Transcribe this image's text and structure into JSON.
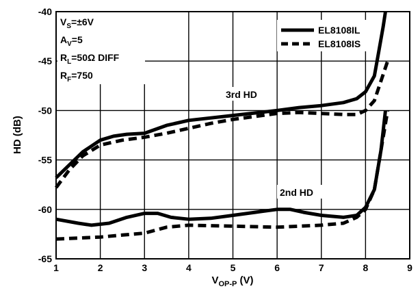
{
  "chart_data": {
    "type": "line",
    "title": "",
    "xlabel": {
      "main": "V",
      "sub": "OP-P",
      "unit": " (V)"
    },
    "ylabel": "HD (dB)",
    "xlim": [
      1,
      9
    ],
    "ylim": [
      -65,
      -40
    ],
    "x_ticks": [
      "1",
      "2",
      "3",
      "4",
      "5",
      "6",
      "7",
      "8",
      "9"
    ],
    "y_ticks": [
      "-40",
      "-45",
      "-50",
      "-55",
      "-60",
      "-65"
    ],
    "grid": true,
    "legend_position": "top-right",
    "conditions": [
      {
        "main": "V",
        "sub": "S",
        "rest": "=±6V"
      },
      {
        "main": "A",
        "sub": "V",
        "rest": "=5"
      },
      {
        "main": "R",
        "sub": "L",
        "rest": "=50Ω DIFF"
      },
      {
        "main": "R",
        "sub": "F",
        "rest": "=750"
      }
    ],
    "annotations": [
      "3rd HD",
      "2nd HD"
    ],
    "series": [
      {
        "name": "EL8108IL",
        "style": "solid",
        "color": "#000000",
        "curves": [
          {
            "label": "3rd HD",
            "points": [
              [
                1,
                -56.8
              ],
              [
                1.3,
                -55.5
              ],
              [
                1.6,
                -54.2
              ],
              [
                2,
                -53.0
              ],
              [
                2.3,
                -52.6
              ],
              [
                2.6,
                -52.4
              ],
              [
                3,
                -52.3
              ],
              [
                3.5,
                -51.5
              ],
              [
                4,
                -51.0
              ],
              [
                5,
                -50.5
              ],
              [
                6,
                -50.0
              ],
              [
                6.5,
                -49.7
              ],
              [
                7,
                -49.5
              ],
              [
                7.5,
                -49.2
              ],
              [
                7.8,
                -48.8
              ],
              [
                8,
                -48.1
              ],
              [
                8.2,
                -46.5
              ],
              [
                8.3,
                -44.0
              ],
              [
                8.4,
                -41.5
              ],
              [
                8.45,
                -40.0
              ]
            ]
          },
          {
            "label": "2nd HD",
            "points": [
              [
                1,
                -61.0
              ],
              [
                1.5,
                -61.4
              ],
              [
                1.8,
                -61.6
              ],
              [
                2.2,
                -61.4
              ],
              [
                2.6,
                -60.8
              ],
              [
                3,
                -60.4
              ],
              [
                3.3,
                -60.4
              ],
              [
                3.6,
                -60.8
              ],
              [
                4,
                -61.0
              ],
              [
                4.5,
                -60.9
              ],
              [
                5,
                -60.6
              ],
              [
                5.5,
                -60.3
              ],
              [
                6,
                -60.0
              ],
              [
                6.3,
                -60.0
              ],
              [
                6.6,
                -60.3
              ],
              [
                7,
                -60.6
              ],
              [
                7.5,
                -60.8
              ],
              [
                7.8,
                -60.6
              ],
              [
                8,
                -59.8
              ],
              [
                8.2,
                -58.0
              ],
              [
                8.35,
                -54.0
              ],
              [
                8.45,
                -50.0
              ]
            ]
          }
        ]
      },
      {
        "name": "EL8108IS",
        "style": "dashed",
        "color": "#000000",
        "curves": [
          {
            "label": "3rd HD",
            "points": [
              [
                1,
                -57.8
              ],
              [
                1.3,
                -56.0
              ],
              [
                1.6,
                -54.6
              ],
              [
                2,
                -53.5
              ],
              [
                2.5,
                -53.0
              ],
              [
                3,
                -52.7
              ],
              [
                3.5,
                -52.3
              ],
              [
                4,
                -51.8
              ],
              [
                4.5,
                -51.3
              ],
              [
                5,
                -50.9
              ],
              [
                5.5,
                -50.6
              ],
              [
                6,
                -50.3
              ],
              [
                6.5,
                -50.2
              ],
              [
                7,
                -50.3
              ],
              [
                7.5,
                -50.4
              ],
              [
                7.8,
                -50.4
              ],
              [
                8,
                -50.0
              ],
              [
                8.2,
                -49.0
              ],
              [
                8.35,
                -47.0
              ],
              [
                8.5,
                -45.0
              ]
            ]
          },
          {
            "label": "2nd HD",
            "points": [
              [
                1,
                -63.0
              ],
              [
                1.5,
                -62.9
              ],
              [
                2,
                -62.8
              ],
              [
                2.5,
                -62.6
              ],
              [
                3,
                -62.4
              ],
              [
                3.5,
                -61.8
              ],
              [
                4,
                -61.6
              ],
              [
                5,
                -61.7
              ],
              [
                6,
                -61.8
              ],
              [
                7,
                -61.6
              ],
              [
                7.5,
                -61.4
              ],
              [
                7.8,
                -60.8
              ],
              [
                8,
                -60.0
              ],
              [
                8.2,
                -58.0
              ],
              [
                8.35,
                -54.0
              ],
              [
                8.5,
                -50.0
              ]
            ]
          }
        ]
      }
    ]
  }
}
